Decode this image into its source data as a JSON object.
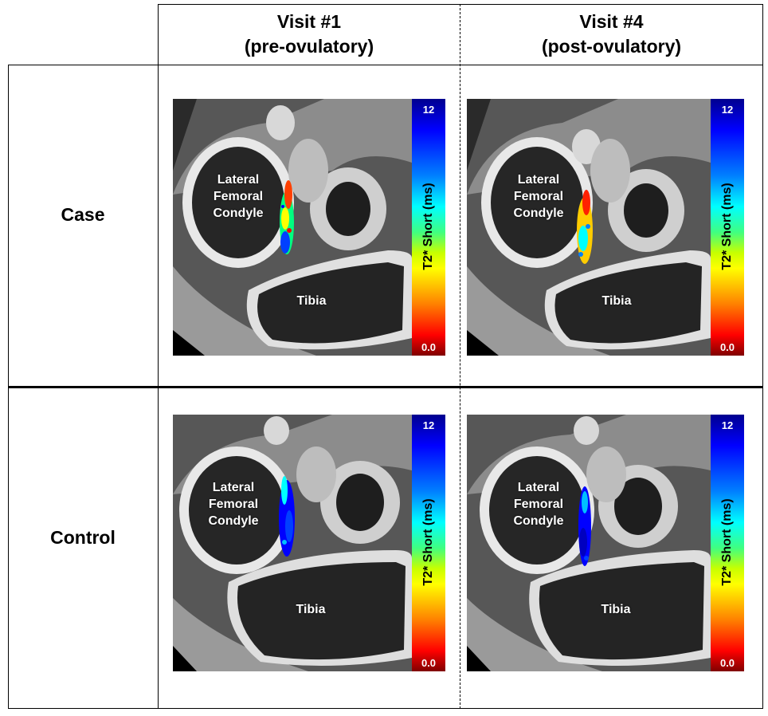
{
  "columns": [
    {
      "title_line1": "Visit #1",
      "title_line2": "(pre-ovulatory)"
    },
    {
      "title_line1": "Visit #4",
      "title_line2": "(post-ovulatory)"
    }
  ],
  "rows": [
    {
      "label": "Case"
    },
    {
      "label": "Control"
    }
  ],
  "anatomy": {
    "femur_line1": "Lateral",
    "femur_line2": "Femoral",
    "femur_line3": "Condyle",
    "tibia": "Tibia"
  },
  "colorbar": {
    "max": "12",
    "min": "0.0",
    "title": "T2* Short (ms)",
    "colors": [
      "#00008f",
      "#0000ff",
      "#0080ff",
      "#00ffff",
      "#c8ff00",
      "#ffff00",
      "#ff8000",
      "#ff0000",
      "#800000"
    ]
  },
  "overlay_colors": {
    "case_visit1": [
      "#ff0000",
      "#ff8000",
      "#ffff00",
      "#00ff80",
      "#0040ff",
      "#0000ff"
    ],
    "case_visit4": [
      "#ff0000",
      "#ff8000",
      "#ffff00",
      "#00ffff",
      "#0080ff"
    ],
    "control_visit1": [
      "#0000ff",
      "#0040ff",
      "#00ffff",
      "#0000c0"
    ],
    "control_visit4": [
      "#0000ff",
      "#0000c0",
      "#00c0ff",
      "#0040ff"
    ]
  }
}
